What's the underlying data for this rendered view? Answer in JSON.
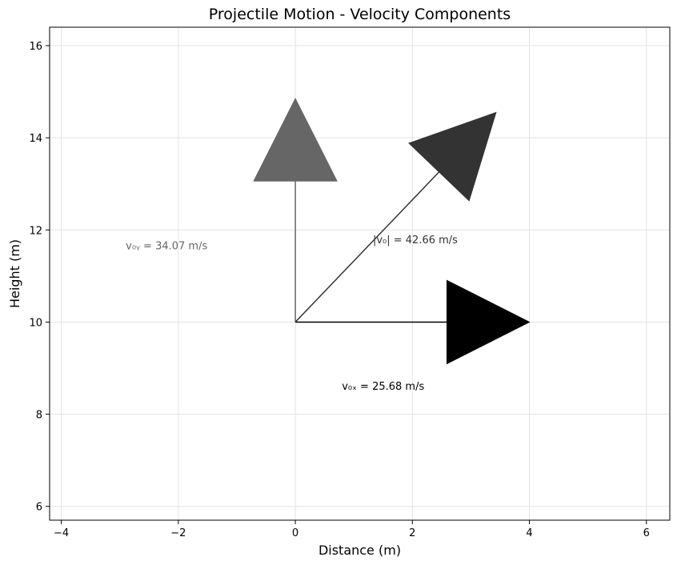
{
  "chart_data": {
    "type": "vector",
    "title": "Projectile Motion - Velocity Components",
    "xlabel": "Distance (m)",
    "ylabel": "Height (m)",
    "xlim": [
      -4.2,
      6.4
    ],
    "ylim": [
      5.7,
      16.4
    ],
    "xticks": [
      -4,
      -2,
      0,
      2,
      4,
      6
    ],
    "xtick_labels": [
      "−4",
      "−2",
      "0",
      "2",
      "4",
      "6"
    ],
    "yticks": [
      6,
      8,
      10,
      12,
      14,
      16
    ],
    "ytick_labels": [
      "6",
      "8",
      "10",
      "12",
      "14",
      "16"
    ],
    "grid": true,
    "origin": [
      0,
      10
    ],
    "vectors": [
      {
        "name": "vx",
        "dx": 4.0,
        "dy": 0.0,
        "color": "#000000",
        "label": "v₀ₓ = 25.68 m/s",
        "label_pos": [
          1.5,
          8.6
        ]
      },
      {
        "name": "vy",
        "dx": 0.0,
        "dy": 4.85,
        "color": "#666666",
        "label": "v₀ᵧ = 34.07 m/s",
        "label_pos": [
          -2.2,
          11.65
        ]
      },
      {
        "name": "v0",
        "dx": 3.43,
        "dy": 4.55,
        "color": "#333333",
        "label": "|v₀| = 42.66 m/s",
        "label_pos": [
          2.05,
          11.78
        ]
      }
    ]
  }
}
